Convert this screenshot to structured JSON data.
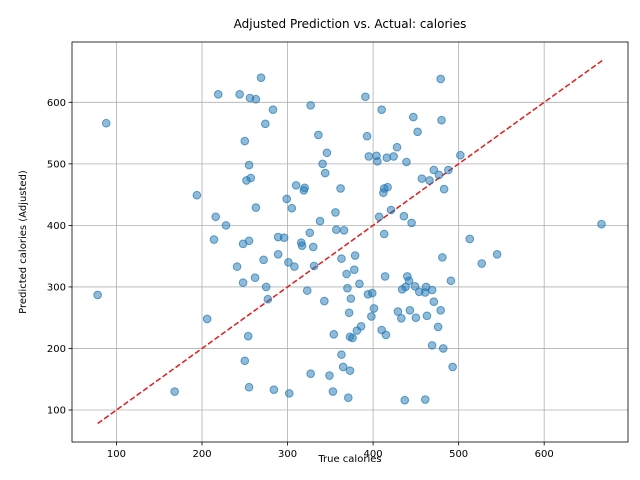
{
  "chart_data": {
    "type": "scatter",
    "title": "Adjusted Prediction vs. Actual: calories",
    "xlabel": "True calories",
    "ylabel": "Predicted calories (Adjusted)",
    "xlim": [
      48,
      698
    ],
    "ylim": [
      48,
      698
    ],
    "xticks": [
      100,
      200,
      300,
      400,
      500,
      600
    ],
    "yticks": [
      100,
      200,
      300,
      400,
      500,
      600
    ],
    "grid": true,
    "point_color": "#1f77b4",
    "reference_line": {
      "style": "dashed",
      "color": "#e31a1c",
      "from": [
        78,
        78
      ],
      "to": [
        668,
        668
      ]
    },
    "points": [
      [
        78,
        287
      ],
      [
        88,
        566
      ],
      [
        168,
        130
      ],
      [
        194,
        449
      ],
      [
        206,
        248
      ],
      [
        214,
        377
      ],
      [
        216,
        414
      ],
      [
        219,
        613
      ],
      [
        228,
        400
      ],
      [
        241,
        333
      ],
      [
        244,
        613
      ],
      [
        248,
        307
      ],
      [
        248,
        370
      ],
      [
        250,
        180
      ],
      [
        250,
        537
      ],
      [
        252,
        473
      ],
      [
        254,
        220
      ],
      [
        255,
        137
      ],
      [
        255,
        498
      ],
      [
        255,
        375
      ],
      [
        256,
        607
      ],
      [
        257,
        477
      ],
      [
        262,
        315
      ],
      [
        263,
        605
      ],
      [
        263,
        429
      ],
      [
        269,
        640
      ],
      [
        272,
        344
      ],
      [
        274,
        565
      ],
      [
        275,
        300
      ],
      [
        277,
        280
      ],
      [
        283,
        588
      ],
      [
        284,
        133
      ],
      [
        289,
        353
      ],
      [
        289,
        381
      ],
      [
        296,
        380
      ],
      [
        299,
        443
      ],
      [
        301,
        340
      ],
      [
        302,
        127
      ],
      [
        305,
        428
      ],
      [
        308,
        333
      ],
      [
        310,
        465
      ],
      [
        316,
        372
      ],
      [
        317,
        367
      ],
      [
        319,
        457
      ],
      [
        320,
        461
      ],
      [
        323,
        294
      ],
      [
        326,
        388
      ],
      [
        327,
        595
      ],
      [
        327,
        159
      ],
      [
        330,
        365
      ],
      [
        331,
        334
      ],
      [
        336,
        547
      ],
      [
        338,
        407
      ],
      [
        341,
        500
      ],
      [
        343,
        277
      ],
      [
        344,
        485
      ],
      [
        346,
        518
      ],
      [
        349,
        156
      ],
      [
        353,
        130
      ],
      [
        354,
        223
      ],
      [
        356,
        421
      ],
      [
        357,
        393
      ],
      [
        362,
        460
      ],
      [
        363,
        190
      ],
      [
        363,
        346
      ],
      [
        365,
        170
      ],
      [
        366,
        392
      ],
      [
        369,
        321
      ],
      [
        370,
        298
      ],
      [
        371,
        120
      ],
      [
        372,
        258
      ],
      [
        373,
        164
      ],
      [
        373,
        219
      ],
      [
        374,
        281
      ],
      [
        376,
        217
      ],
      [
        378,
        328
      ],
      [
        379,
        351
      ],
      [
        381,
        229
      ],
      [
        384,
        305
      ],
      [
        386,
        236
      ],
      [
        391,
        609
      ],
      [
        393,
        545
      ],
      [
        394,
        288
      ],
      [
        395,
        512
      ],
      [
        398,
        252
      ],
      [
        399,
        290
      ],
      [
        401,
        265
      ],
      [
        404,
        513
      ],
      [
        405,
        504
      ],
      [
        407,
        414
      ],
      [
        410,
        588
      ],
      [
        410,
        230
      ],
      [
        412,
        453
      ],
      [
        413,
        386
      ],
      [
        413,
        460
      ],
      [
        414,
        317
      ],
      [
        415,
        222
      ],
      [
        416,
        510
      ],
      [
        417,
        462
      ],
      [
        421,
        425
      ],
      [
        424,
        512
      ],
      [
        428,
        527
      ],
      [
        429,
        260
      ],
      [
        433,
        249
      ],
      [
        434,
        296
      ],
      [
        436,
        415
      ],
      [
        437,
        116
      ],
      [
        438,
        300
      ],
      [
        439,
        503
      ],
      [
        440,
        317
      ],
      [
        442,
        310
      ],
      [
        443,
        262
      ],
      [
        445,
        404
      ],
      [
        447,
        576
      ],
      [
        449,
        301
      ],
      [
        450,
        250
      ],
      [
        452,
        552
      ],
      [
        454,
        292
      ],
      [
        457,
        476
      ],
      [
        461,
        117
      ],
      [
        461,
        291
      ],
      [
        462,
        300
      ],
      [
        463,
        253
      ],
      [
        466,
        473
      ],
      [
        469,
        295
      ],
      [
        469,
        205
      ],
      [
        471,
        276
      ],
      [
        471,
        490
      ],
      [
        476,
        235
      ],
      [
        477,
        482
      ],
      [
        479,
        262
      ],
      [
        479,
        638
      ],
      [
        480,
        571
      ],
      [
        481,
        348
      ],
      [
        482,
        200
      ],
      [
        483,
        459
      ],
      [
        488,
        490
      ],
      [
        491,
        310
      ],
      [
        493,
        170
      ],
      [
        502,
        514
      ],
      [
        513,
        378
      ],
      [
        527,
        338
      ],
      [
        545,
        353
      ],
      [
        667,
        402
      ]
    ]
  }
}
